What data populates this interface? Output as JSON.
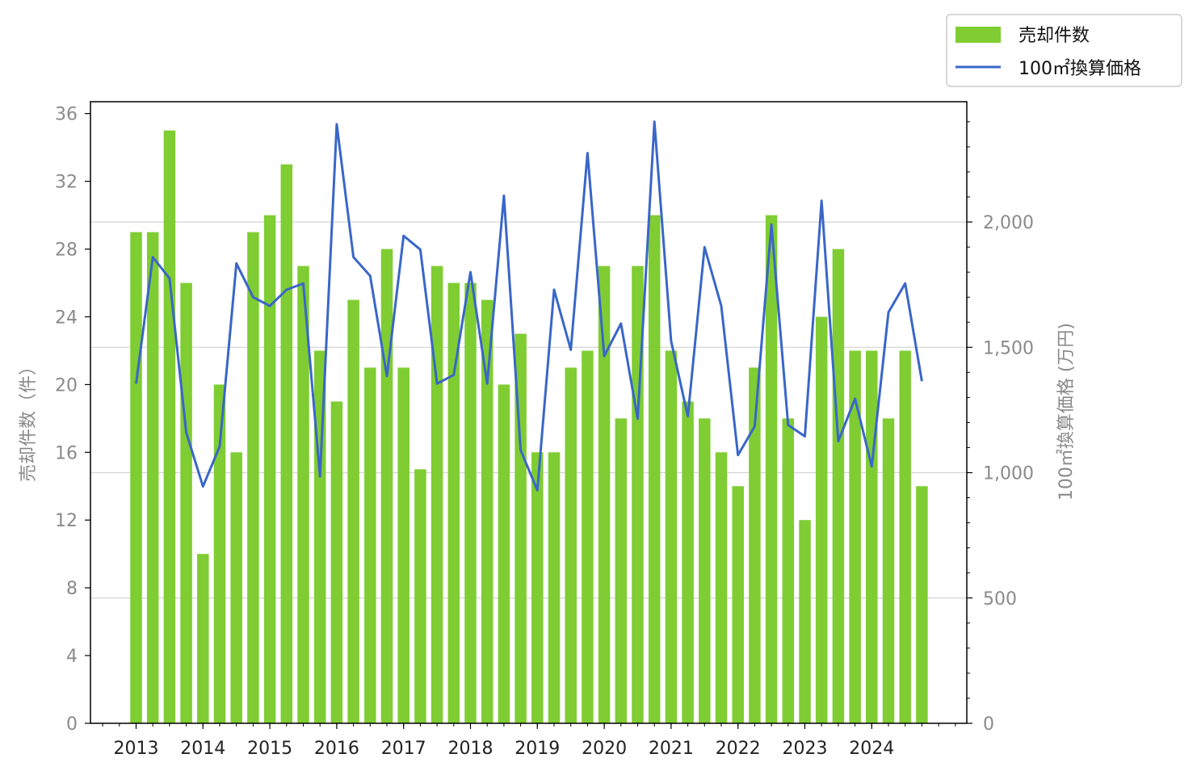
{
  "chart_data": {
    "type": "bar+line",
    "ylabel_left": "売却件数（件）",
    "ylabel_right": "100㎡換算価格 (万円)",
    "left_ticks": [
      "0",
      "4",
      "8",
      "12",
      "16",
      "20",
      "24",
      "28",
      "32",
      "36"
    ],
    "left_ylim": [
      0,
      36.7
    ],
    "right_ticks": [
      "0",
      "500",
      "1,000",
      "1,500",
      "2,000"
    ],
    "right_ylim": [
      0,
      2480
    ],
    "x_ticks": [
      "2013",
      "2014",
      "2015",
      "2016",
      "2017",
      "2018",
      "2019",
      "2020",
      "2021",
      "2022",
      "2023",
      "2024"
    ],
    "x": [
      "2013Q1",
      "2013Q2",
      "2013Q3",
      "2013Q4",
      "2014Q1",
      "2014Q2",
      "2014Q3",
      "2014Q4",
      "2015Q1",
      "2015Q2",
      "2015Q3",
      "2015Q4",
      "2016Q1",
      "2016Q2",
      "2016Q3",
      "2016Q4",
      "2017Q1",
      "2017Q2",
      "2017Q3",
      "2017Q4",
      "2018Q1",
      "2018Q2",
      "2018Q3",
      "2018Q4",
      "2019Q1",
      "2019Q2",
      "2019Q3",
      "2019Q4",
      "2020Q1",
      "2020Q2",
      "2020Q3",
      "2020Q4",
      "2021Q1",
      "2021Q2",
      "2021Q3",
      "2021Q4",
      "2022Q1",
      "2022Q2",
      "2022Q3",
      "2022Q4",
      "2023Q1",
      "2023Q2",
      "2023Q3",
      "2023Q4",
      "2024Q1",
      "2024Q2",
      "2024Q3",
      "2024Q4"
    ],
    "series": [
      {
        "name": "売却件数",
        "type": "bar",
        "axis": "left",
        "color": "#7fcd32",
        "values": [
          29,
          29,
          35,
          26,
          10,
          20,
          16,
          29,
          30,
          33,
          27,
          22,
          19,
          25,
          21,
          28,
          21,
          15,
          27,
          26,
          26,
          25,
          20,
          23,
          16,
          16,
          21,
          22,
          27,
          18,
          27,
          30,
          22,
          19,
          18,
          16,
          14,
          21,
          30,
          18,
          12,
          24,
          28,
          22,
          22,
          18,
          22,
          14
        ]
      },
      {
        "name": "100㎡換算価格",
        "type": "line",
        "axis": "right",
        "color": "#3a66c8",
        "values": [
          1355,
          1860,
          1775,
          1160,
          945,
          1105,
          1835,
          1700,
          1665,
          1730,
          1755,
          985,
          2390,
          1860,
          1785,
          1385,
          1945,
          1890,
          1355,
          1390,
          1800,
          1355,
          2105,
          1090,
          930,
          1730,
          1490,
          2275,
          1465,
          1595,
          1215,
          2400,
          1525,
          1225,
          1900,
          1665,
          1070,
          1185,
          1990,
          1190,
          1145,
          2085,
          1125,
          1295,
          1025,
          1640,
          1755,
          1365
        ]
      }
    ],
    "grid": "horizontal (right axis)",
    "legend": "top-right outside"
  }
}
